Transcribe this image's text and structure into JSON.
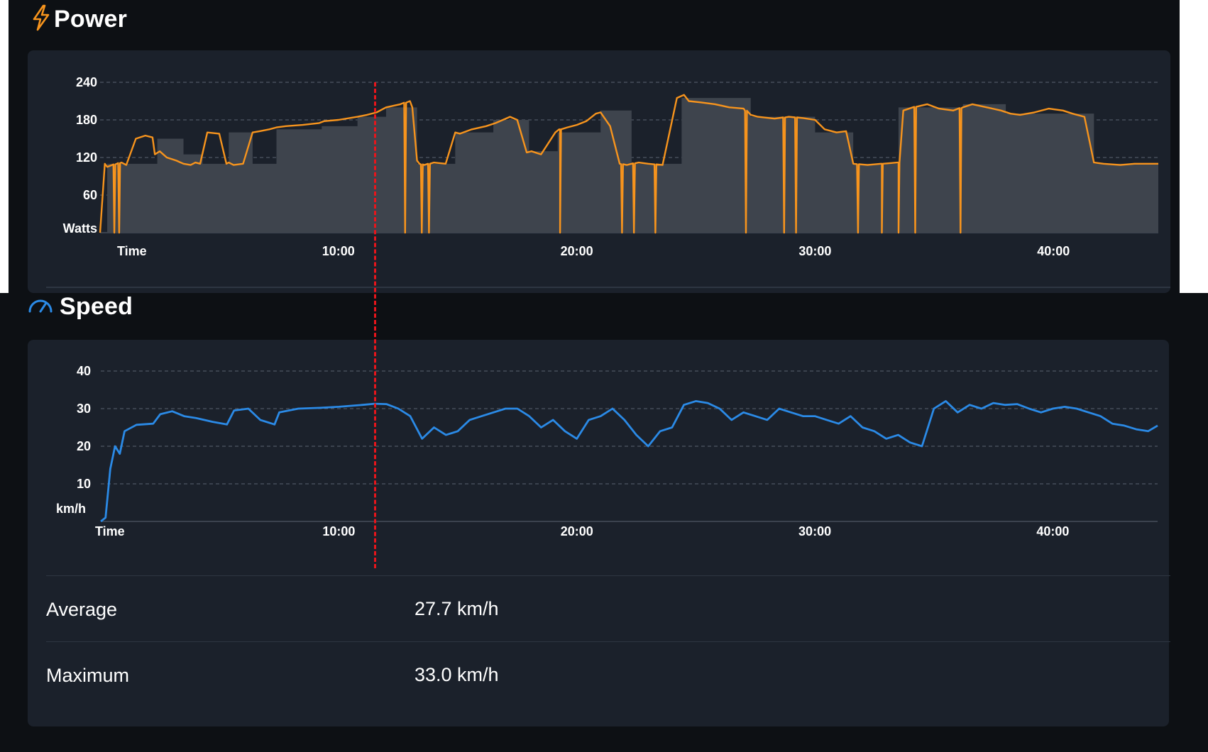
{
  "power": {
    "title": "Power",
    "icon": "lightning-bolt-icon",
    "color": "#f7941d",
    "fill": "#3e444d",
    "y_unit": "Watts",
    "x_label": "Time"
  },
  "speed": {
    "title": "Speed",
    "icon": "speedometer-icon",
    "color": "#2b8ae6",
    "y_unit": "km/h",
    "x_label": "Time",
    "stats": [
      {
        "label": "Average",
        "value": "27.7 km/h"
      },
      {
        "label": "Maximum",
        "value": "33.0 km/h"
      }
    ]
  },
  "cursor": {
    "minute": 11.5,
    "color": "#e8151b"
  },
  "chart_data": [
    {
      "type": "line",
      "title": "Power",
      "ylabel": "Watts",
      "xlabel": "Time",
      "ylim": [
        0,
        240
      ],
      "yticks": [
        60,
        120,
        180,
        240
      ],
      "xlim": [
        0,
        44.4
      ],
      "xticks": [
        {
          "value": 10,
          "label": "10:00"
        },
        {
          "value": 20,
          "label": "20:00"
        },
        {
          "value": 30,
          "label": "30:00"
        },
        {
          "value": 40,
          "label": "40:00"
        }
      ],
      "grid": true,
      "series": [
        {
          "target_steps": [
            [
              0,
              0
            ],
            [
              0.3,
              110
            ],
            [
              2.4,
              150
            ],
            [
              3.5,
              125
            ],
            [
              4.3,
              110
            ],
            [
              5.4,
              160
            ],
            [
              6.4,
              110
            ],
            [
              7.4,
              165
            ],
            [
              9.3,
              170
            ],
            [
              10.8,
              185
            ],
            [
              12.0,
              200
            ],
            [
              13.3,
              110
            ],
            [
              14.9,
              160
            ],
            [
              16.5,
              180
            ],
            [
              18.0,
              130
            ],
            [
              19.2,
              160
            ],
            [
              21.0,
              195
            ],
            [
              22.3,
              110
            ],
            [
              24.4,
              215
            ],
            [
              27.3,
              185
            ],
            [
              30.0,
              160
            ],
            [
              31.6,
              110
            ],
            [
              33.5,
              200
            ],
            [
              35.0,
              200
            ],
            [
              36.2,
              205
            ],
            [
              38.0,
              190
            ],
            [
              41.7,
              110
            ],
            [
              44.4,
              110
            ]
          ],
          "x": [
            0,
            0.2,
            0.3,
            0.5,
            0.7,
            0.9,
            1.1,
            1.5,
            1.9,
            2.2,
            2.3,
            2.5,
            2.8,
            3.2,
            3.5,
            3.8,
            4.0,
            4.2,
            4.5,
            5.0,
            5.3,
            5.4,
            5.6,
            6.0,
            6.4,
            6.7,
            7.1,
            7.4,
            7.8,
            8.5,
            9.2,
            9.4,
            10.0,
            10.8,
            11.2,
            11.6,
            12.0,
            12.6,
            13.0,
            13.1,
            13.3,
            13.4,
            13.6,
            14.0,
            14.5,
            14.9,
            15.1,
            15.6,
            16.2,
            16.6,
            16.9,
            17.2,
            17.5,
            17.9,
            18.1,
            18.5,
            19.1,
            19.3,
            19.6,
            20.0,
            20.4,
            20.8,
            21.0,
            21.4,
            21.8,
            22.1,
            22.3,
            22.6,
            23.0,
            23.6,
            24.2,
            24.5,
            24.7,
            25.2,
            25.8,
            26.4,
            27.0,
            27.3,
            27.6,
            28.3,
            28.9,
            29.5,
            30.0,
            30.4,
            30.9,
            31.3,
            31.6,
            32.2,
            32.8,
            33.5,
            33.7,
            34.1,
            34.7,
            35.2,
            35.8,
            36.2,
            36.6,
            37.2,
            37.8,
            38.2,
            38.6,
            39.2,
            39.8,
            40.4,
            40.8,
            41.3,
            41.7,
            42.1,
            42.8,
            43.4,
            44.4
          ],
          "values": [
            0,
            110,
            105,
            108,
            110,
            112,
            108,
            150,
            155,
            152,
            125,
            130,
            120,
            115,
            110,
            108,
            112,
            110,
            160,
            158,
            110,
            112,
            108,
            110,
            160,
            162,
            165,
            168,
            170,
            172,
            175,
            178,
            180,
            185,
            188,
            192,
            200,
            205,
            210,
            200,
            115,
            110,
            108,
            112,
            110,
            160,
            158,
            165,
            170,
            175,
            180,
            185,
            180,
            128,
            130,
            125,
            160,
            165,
            168,
            172,
            178,
            190,
            192,
            170,
            110,
            108,
            110,
            112,
            110,
            108,
            215,
            220,
            210,
            208,
            205,
            200,
            198,
            188,
            185,
            182,
            185,
            183,
            180,
            165,
            160,
            162,
            110,
            108,
            110,
            112,
            195,
            200,
            205,
            198,
            195,
            200,
            205,
            200,
            195,
            190,
            188,
            192,
            198,
            195,
            190,
            185,
            112,
            110,
            108,
            110,
            110
          ],
          "dropouts": [
            0.6,
            0.8,
            12.8,
            13.5,
            13.8,
            19.3,
            21.9,
            22.4,
            23.3,
            27.1,
            28.7,
            29.2,
            31.8,
            32.8,
            33.5,
            34.2,
            36.1
          ]
        }
      ]
    },
    {
      "type": "line",
      "title": "Speed",
      "ylabel": "km/h",
      "xlabel": "Time",
      "ylim": [
        0,
        40
      ],
      "yticks": [
        10,
        20,
        30,
        40
      ],
      "xlim": [
        0,
        44.4
      ],
      "xticks": [
        {
          "value": 10,
          "label": "10:00"
        },
        {
          "value": 20,
          "label": "20:00"
        },
        {
          "value": 30,
          "label": "30:00"
        },
        {
          "value": 40,
          "label": "40:00"
        }
      ],
      "grid": true,
      "series": [
        {
          "x": [
            0,
            0.2,
            0.4,
            0.6,
            0.8,
            1.0,
            1.5,
            2.2,
            2.5,
            3.0,
            3.5,
            4.0,
            4.7,
            5.3,
            5.6,
            6.2,
            6.7,
            7.3,
            7.5,
            8.3,
            9.2,
            10.0,
            11.0,
            11.5,
            12.0,
            12.5,
            13.0,
            13.5,
            14.0,
            14.5,
            15.0,
            15.5,
            16.0,
            16.5,
            17.0,
            17.5,
            18.0,
            18.5,
            19.0,
            19.5,
            20.0,
            20.5,
            21.0,
            21.5,
            22.0,
            22.5,
            23.0,
            23.5,
            24.0,
            24.5,
            25.0,
            25.5,
            26.0,
            26.5,
            27.0,
            27.5,
            28.0,
            28.5,
            29.0,
            29.5,
            30.0,
            30.5,
            31.0,
            31.5,
            32.0,
            32.5,
            33.0,
            33.5,
            34.0,
            34.5,
            35.0,
            35.5,
            36.0,
            36.5,
            37.0,
            37.5,
            38.0,
            38.5,
            39.0,
            39.5,
            40.0,
            40.5,
            41.0,
            41.5,
            42.0,
            42.5,
            43.0,
            43.5,
            44.0,
            44.4
          ],
          "values": [
            0,
            1,
            14,
            20,
            18,
            24,
            25.7,
            26,
            28.5,
            29.3,
            28,
            27.5,
            26.5,
            25.8,
            29.5,
            30,
            27,
            25.8,
            29,
            30,
            30.2,
            30.5,
            31,
            31.3,
            31.2,
            30,
            28,
            22,
            25,
            23,
            24,
            27,
            28,
            29,
            30,
            30,
            28,
            25,
            27,
            24,
            22,
            27,
            28,
            30,
            27,
            23,
            20,
            24,
            25,
            31,
            32,
            31.5,
            30,
            27,
            29,
            28,
            27,
            30,
            29,
            28,
            28,
            27,
            26,
            28,
            25,
            24,
            22,
            23,
            21,
            20,
            30,
            32,
            29,
            31,
            30,
            31.5,
            31,
            31.2,
            30,
            29,
            30,
            30.5,
            30,
            29,
            28,
            26,
            25.5,
            24.5,
            24,
            25.5
          ]
        }
      ]
    }
  ]
}
